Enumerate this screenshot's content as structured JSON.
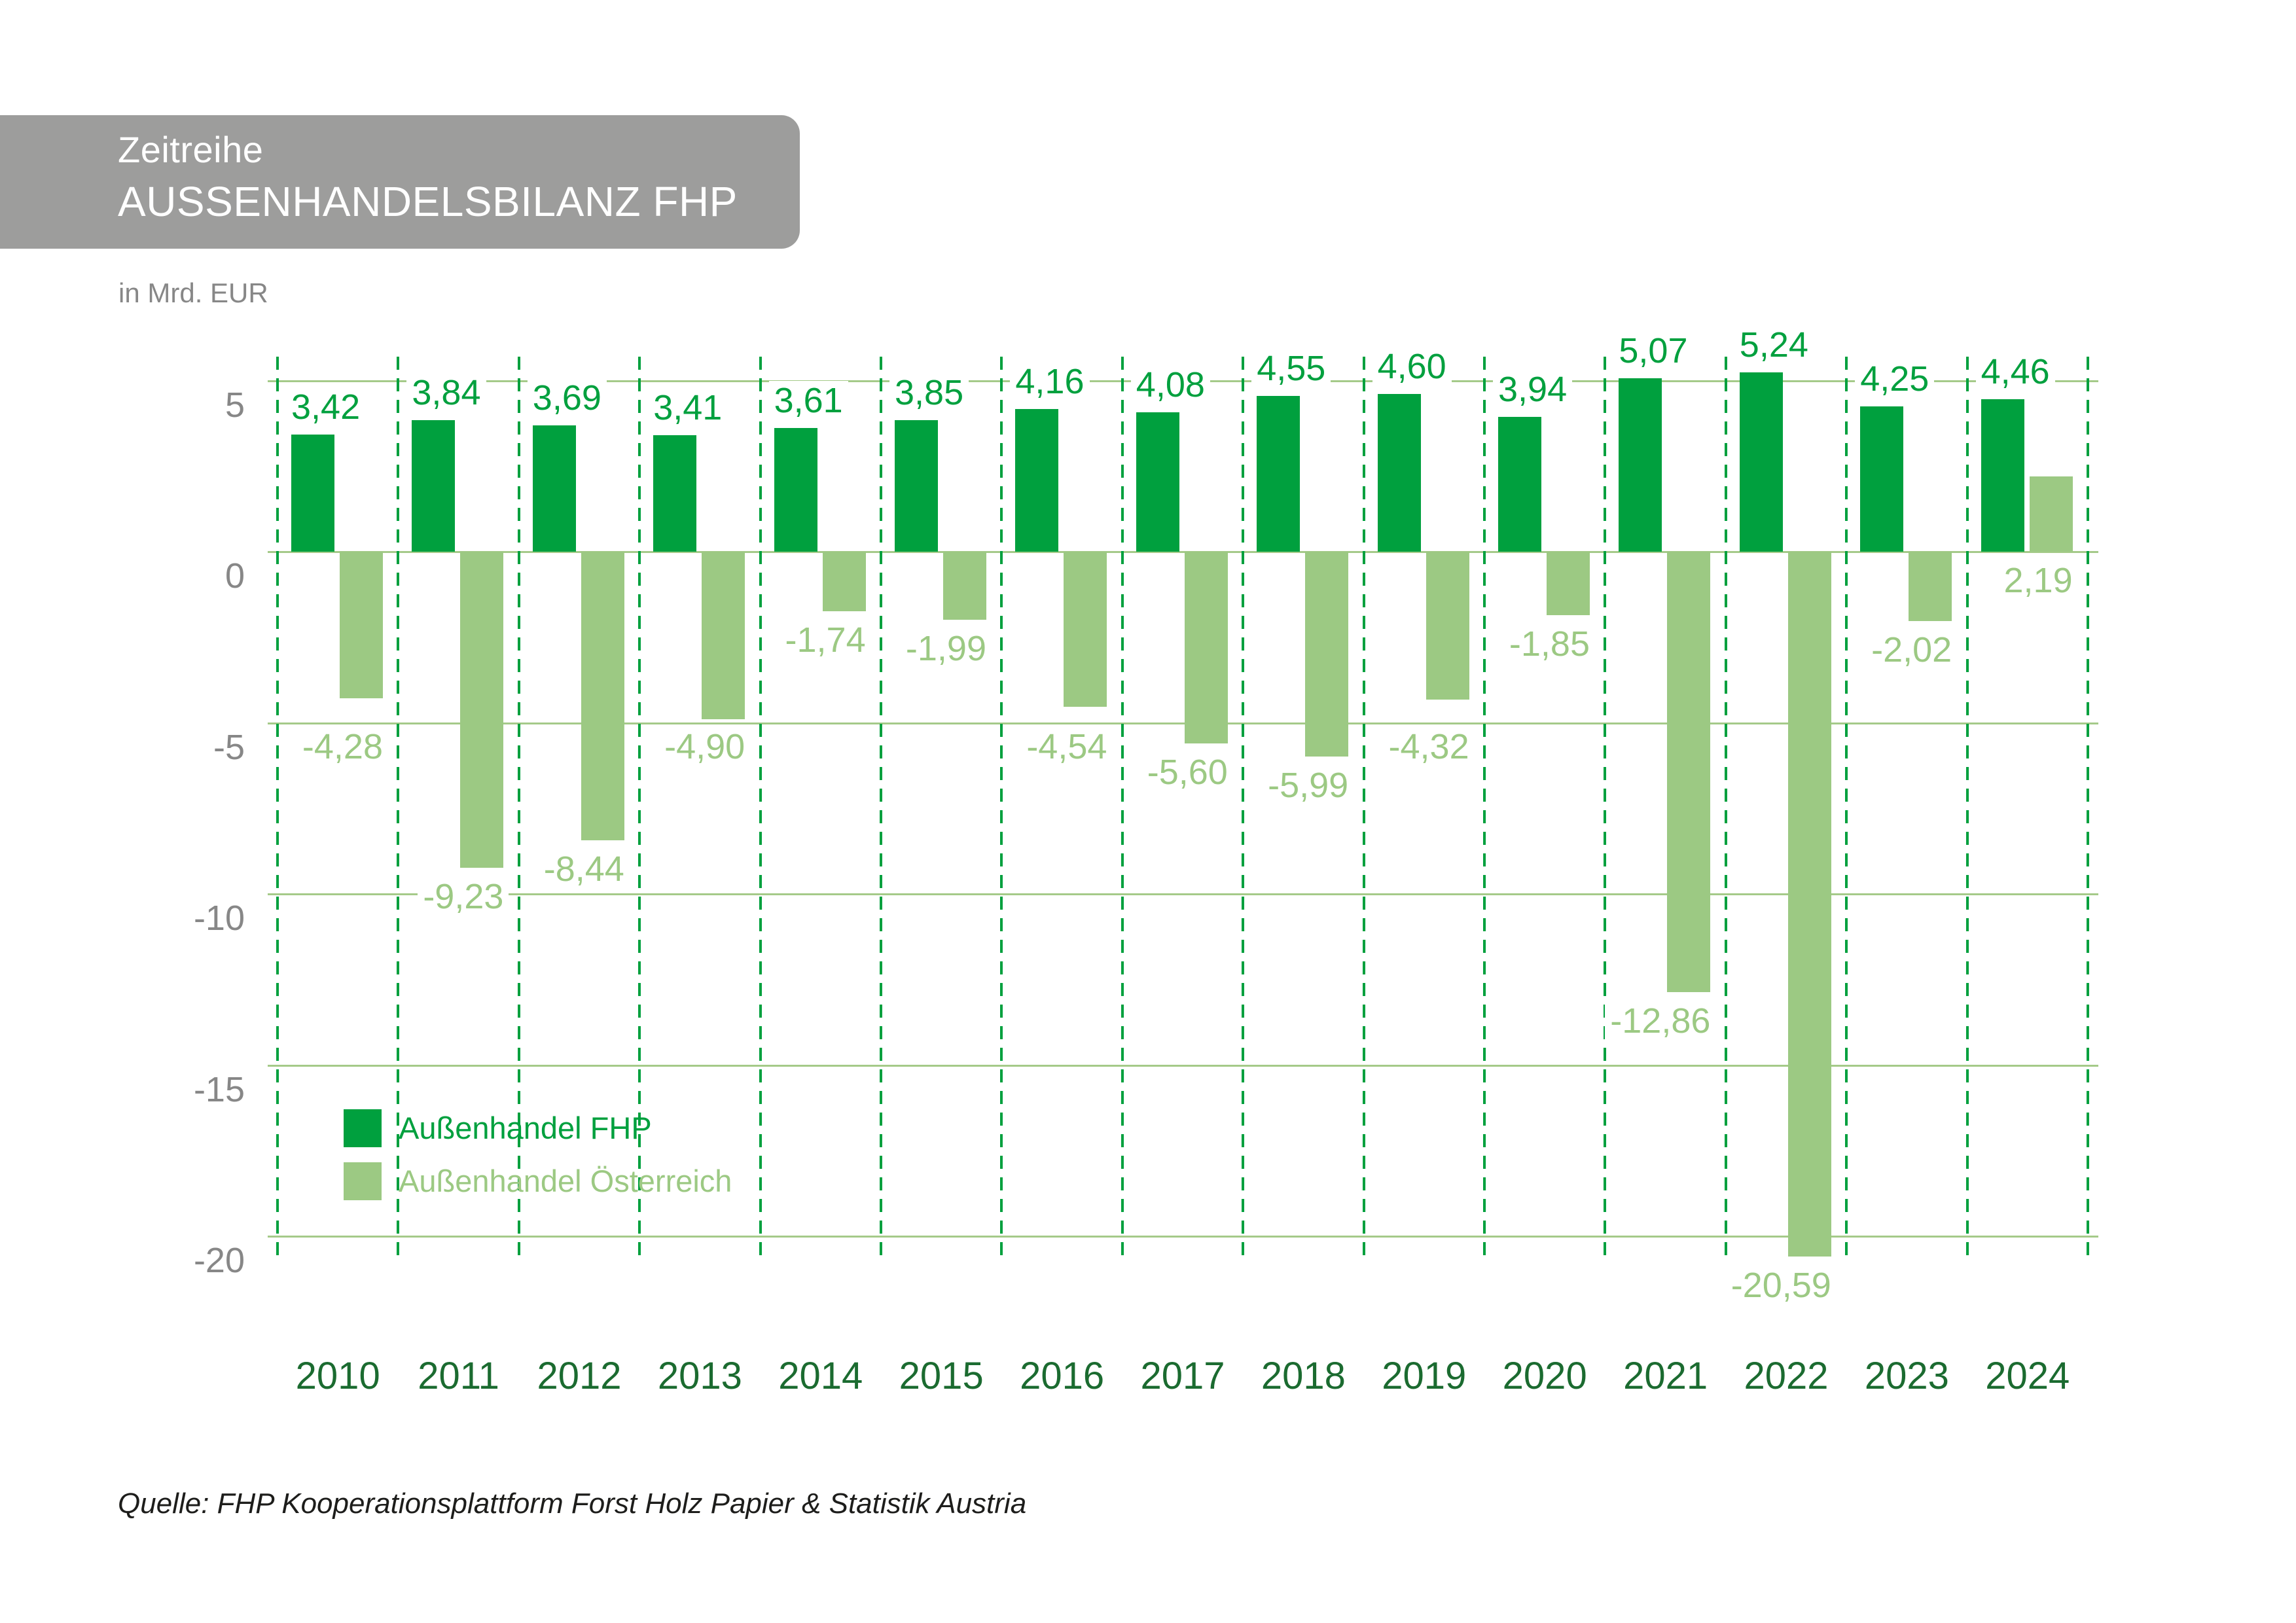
{
  "page": {
    "background_color": "#FFFFFF"
  },
  "header": {
    "title_line1": "Zeitreihe",
    "title_line2": "AUSSENHANDELSBILANZ FHP",
    "subtitle": "in Mrd. EUR",
    "box_color": "#9D9D9C",
    "text_color": "#FFFFFF"
  },
  "source_note": "Quelle: FHP Kooperationsplattform Forst Holz Papier & Statistik Austria",
  "chart_data": {
    "type": "bar",
    "title": "Zeitreihe AUSSENHANDELSBILANZ FHP",
    "unit_label": "in Mrd. EUR",
    "categories": [
      "2010",
      "2011",
      "2012",
      "2013",
      "2014",
      "2015",
      "2016",
      "2017",
      "2018",
      "2019",
      "2020",
      "2021",
      "2022",
      "2023",
      "2024"
    ],
    "series": [
      {
        "name": "Außenhandel FHP",
        "color": "#00A03E",
        "values": [
          3.42,
          3.84,
          3.69,
          3.41,
          3.61,
          3.85,
          4.16,
          4.08,
          4.55,
          4.6,
          3.94,
          5.07,
          5.24,
          4.25,
          4.46
        ],
        "value_labels": [
          "3,42",
          "3,84",
          "3,69",
          "3,41",
          "3,61",
          "3,85",
          "4,16",
          "4,08",
          "4,55",
          "4,60",
          "3,94",
          "5,07",
          "5,24",
          "4,25",
          "4,46"
        ]
      },
      {
        "name": "Außenhandel Österreich",
        "color": "#9CC983",
        "values": [
          -4.28,
          -9.23,
          -8.44,
          -4.9,
          -1.74,
          -1.99,
          -4.54,
          -5.6,
          -5.99,
          -4.32,
          -1.85,
          -12.86,
          -20.59,
          -2.02,
          2.19
        ],
        "value_labels": [
          "-4,28",
          "-9,23",
          "-8,44",
          "-4,90",
          "-1,74",
          "-1,99",
          "-4,54",
          "-5,60",
          "-5,99",
          "-4,32",
          "-1,85",
          "-12,86",
          "-20,59",
          "-2,02",
          "2,19"
        ]
      }
    ],
    "y_axis": {
      "ticks": [
        5,
        0,
        -5,
        -10,
        -15,
        -20
      ],
      "tick_labels": [
        "5",
        "0",
        "-5",
        "-10",
        "-15",
        "-20"
      ],
      "range_top": 5.7,
      "range_bottom": -20.7,
      "label_color": "#878787"
    },
    "grid": {
      "horizontal_style": "solid",
      "vertical_style": "dashed-category-separators",
      "gridline_color": "#A5CA89",
      "separator_color": "#00A03E"
    },
    "category_label_color": "#1B6B30",
    "legend_position": "inside-bottom-left",
    "value_labels_shown": true
  }
}
